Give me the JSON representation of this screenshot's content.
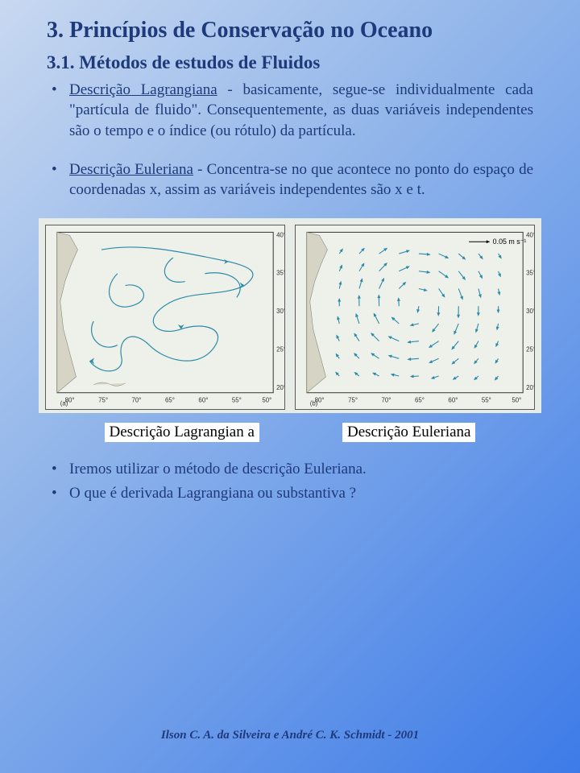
{
  "title": "3. Princípios de Conservação no Oceano",
  "subtitle": "3.1. Métodos de estudos de Fluidos",
  "bullets": [
    {
      "term": "Descrição Lagrangiana",
      "rest": " - basicamente, segue-se individualmente cada \"partícula de fluido\". Consequentemente, as duas variáveis independentes são o tempo e o índice (ou rótulo) da partícula."
    },
    {
      "term": "Descrição Euleriana",
      "rest": " - Concentra-se no que acontece no ponto do espaço de coordenadas x, assim as variáveis independentes são x e t."
    }
  ],
  "captions": {
    "left": "Descrição Lagrangian a",
    "right": "Descrição Euleriana"
  },
  "lower_bullets": [
    "Iremos utilizar o método de descrição Euleriana.",
    "O que é derivada Lagrangiana ou substantiva ?"
  ],
  "footer": "Ilson C. A. da Silveira e André C. K. Schmidt - 2001",
  "maps": {
    "stroke_color": "#2a8aa8",
    "coast_color": "#8a8a7a",
    "frame_color": "#333333",
    "lon_ticks": [
      "80°",
      "75°",
      "70°",
      "65°",
      "60°",
      "55°",
      "50°"
    ],
    "lat_ticks": [
      "40°",
      "35°",
      "30°",
      "25°",
      "20°"
    ],
    "left_label": "(a)",
    "right_label": "(b)",
    "scale_text": "0.05 m s⁻¹"
  }
}
